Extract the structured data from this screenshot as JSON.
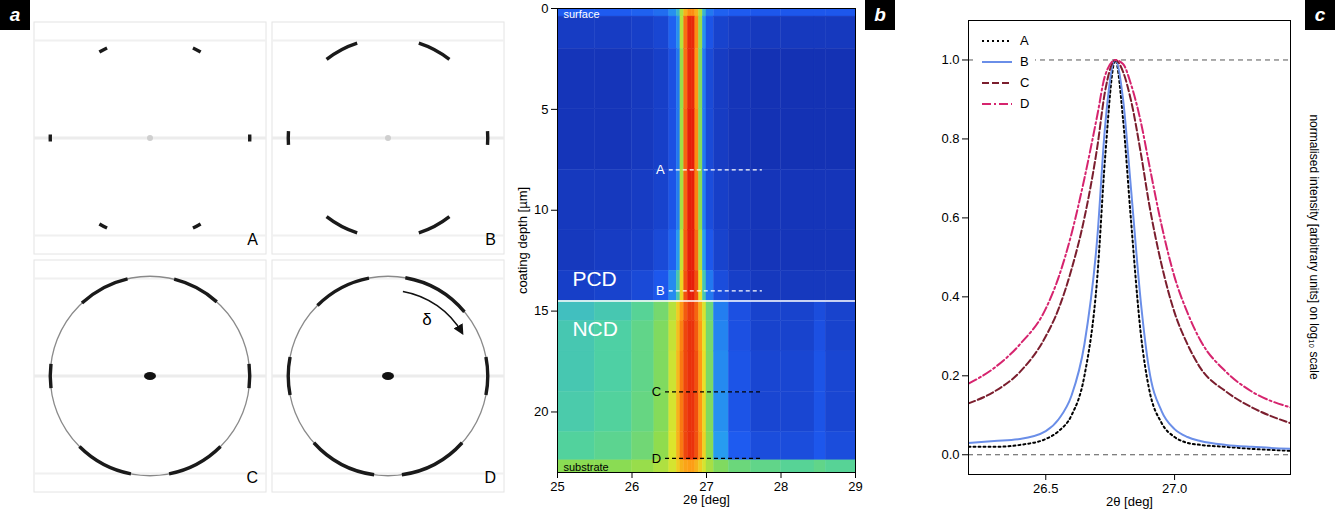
{
  "chart_data": [
    {
      "type": "diffraction_images",
      "panel": "a",
      "images": [
        {
          "label": "A",
          "ring": false,
          "arcs": [
            {
              "center": 0,
              "width": 4
            },
            {
              "center": 62,
              "width": 5
            },
            {
              "center": 118,
              "width": 5
            },
            {
              "center": 180,
              "width": 4
            },
            {
              "center": 242,
              "width": 5
            },
            {
              "center": 298,
              "width": 5
            }
          ]
        },
        {
          "label": "B",
          "ring": false,
          "arcs": [
            {
              "center": 0,
              "width": 8
            },
            {
              "center": 62,
              "width": 20
            },
            {
              "center": 118,
              "width": 20
            },
            {
              "center": 180,
              "width": 8
            },
            {
              "center": 242,
              "width": 20
            },
            {
              "center": 298,
              "width": 20
            }
          ]
        },
        {
          "label": "C",
          "ring": true,
          "arcs": [
            {
              "center": 0,
              "width": 14
            },
            {
              "center": 62,
              "width": 28
            },
            {
              "center": 118,
              "width": 30
            },
            {
              "center": 180,
              "width": 14
            },
            {
              "center": 242,
              "width": 34
            },
            {
              "center": 298,
              "width": 34
            }
          ]
        },
        {
          "label": "D",
          "ring": true,
          "arcs": [
            {
              "center": 0,
              "width": 22
            },
            {
              "center": 60,
              "width": 40
            },
            {
              "center": 118,
              "width": 34
            },
            {
              "center": 180,
              "width": 22
            },
            {
              "center": 242,
              "width": 40
            },
            {
              "center": 298,
              "width": 40
            }
          ],
          "arrow": {
            "label": "δ",
            "from": 80,
            "to": 30
          }
        }
      ]
    },
    {
      "type": "heatmap",
      "panel": "b",
      "x_label": "2θ [deg]",
      "y_label": "coating depth [µm]",
      "xlim": [
        25,
        29
      ],
      "xticks": [
        25,
        26,
        27,
        28,
        29
      ],
      "ylim": [
        0,
        23
      ],
      "yticks": [
        0,
        5,
        10,
        15,
        20
      ],
      "x_edges": [
        25.0,
        25.5,
        26.0,
        26.3,
        26.5,
        26.6,
        26.65,
        26.7,
        26.75,
        26.8,
        26.85,
        26.9,
        26.95,
        27.0,
        27.1,
        27.3,
        27.6,
        28.0,
        28.45,
        28.6,
        29.0
      ],
      "y_edges": [
        0,
        0.4,
        2,
        5,
        8,
        11,
        13,
        14.5,
        15.5,
        17,
        19,
        21,
        22.4,
        23
      ],
      "values": [
        [
          2.5,
          2.5,
          2.6,
          2.8,
          3.4,
          4.2,
          6.5,
          8,
          8.5,
          8.5,
          8,
          6.5,
          4.2,
          3,
          2.6,
          2.5,
          2.4,
          2.4,
          2.4,
          2.4
        ],
        [
          1.6,
          1.6,
          1.7,
          1.9,
          2.6,
          3.4,
          6.6,
          8.8,
          9.5,
          9.5,
          8.5,
          6.2,
          3.4,
          2.3,
          1.8,
          1.6,
          1.5,
          1.5,
          1.5,
          1.5
        ],
        [
          1.4,
          1.4,
          1.5,
          1.7,
          2.2,
          3,
          6.2,
          8.8,
          9.5,
          9.5,
          8.4,
          5.8,
          3,
          2,
          1.6,
          1.4,
          1.3,
          1.3,
          1.3,
          1.3
        ],
        [
          1.4,
          1.4,
          1.5,
          1.7,
          2.2,
          3,
          6.3,
          8.9,
          9.6,
          9.6,
          8.5,
          5.9,
          3,
          2,
          1.6,
          1.4,
          1.3,
          1.3,
          1.3,
          1.3
        ],
        [
          1.5,
          1.5,
          1.6,
          1.8,
          2.3,
          3.1,
          6.4,
          8.9,
          9.6,
          9.6,
          8.6,
          6,
          3.1,
          2.1,
          1.7,
          1.5,
          1.4,
          1.4,
          1.4,
          1.4
        ],
        [
          1.5,
          1.6,
          1.7,
          2,
          2.6,
          3.6,
          6.8,
          9,
          9.6,
          9.6,
          8.8,
          6.5,
          3.6,
          2.4,
          1.8,
          1.5,
          1.4,
          1.4,
          1.4,
          1.4
        ],
        [
          1.7,
          1.8,
          2,
          2.4,
          3.3,
          4.6,
          7.5,
          9.1,
          9.6,
          9.6,
          9.1,
          7.3,
          4.6,
          3,
          2.1,
          1.7,
          1.5,
          1.5,
          1.5,
          1.5
        ],
        [
          4.4,
          4.6,
          5,
          5.6,
          6.6,
          7.6,
          8.4,
          9,
          9.3,
          9.3,
          8.9,
          8.1,
          7,
          5.4,
          3.1,
          2.2,
          1.8,
          1.8,
          2.1,
          1.8
        ],
        [
          4.6,
          4.8,
          5.2,
          5.8,
          6.8,
          7.8,
          8.6,
          9.2,
          9.4,
          9.4,
          9,
          8.3,
          7.2,
          5.6,
          3.2,
          2.2,
          1.8,
          1.8,
          2.2,
          1.8
        ],
        [
          4.6,
          4.8,
          5.2,
          5.8,
          6.9,
          7.9,
          8.7,
          9.2,
          9.4,
          9.4,
          9.1,
          8.4,
          7.3,
          5.7,
          3.3,
          2.3,
          1.9,
          1.9,
          2.3,
          1.9
        ],
        [
          4.7,
          4.9,
          5.3,
          5.9,
          7,
          8,
          8.7,
          9.2,
          9.4,
          9.4,
          9.1,
          8.4,
          7.4,
          5.8,
          3.4,
          2.3,
          1.9,
          1.9,
          2.3,
          1.9
        ],
        [
          4.9,
          5.1,
          5.5,
          6.1,
          7.1,
          8,
          8.7,
          9.2,
          9.4,
          9.4,
          9.1,
          8.5,
          7.5,
          6,
          3.6,
          2.5,
          2.1,
          2.1,
          2.4,
          2.1
        ],
        [
          6,
          6,
          6.2,
          6.5,
          7,
          7.6,
          8,
          8.2,
          8.3,
          8.3,
          8,
          7.6,
          7,
          6.4,
          5.8,
          5.4,
          5.2,
          5,
          5.2,
          5
        ]
      ],
      "boundary": 14.5,
      "lines": [
        {
          "label": "A",
          "depth": 8,
          "x1": 26.5,
          "x2": 27.75,
          "color": "white"
        },
        {
          "label": "B",
          "depth": 14,
          "x1": 26.5,
          "x2": 27.75,
          "color": "white"
        },
        {
          "label": "C",
          "depth": 19,
          "x1": 26.45,
          "x2": 27.75,
          "color": "black"
        },
        {
          "label": "D",
          "depth": 22.3,
          "x1": 26.45,
          "x2": 27.75,
          "color": "black"
        }
      ],
      "annotations": [
        {
          "text": "surface",
          "x": 25.08,
          "y": 0.3,
          "color": "white"
        },
        {
          "text": "substrate",
          "x": 25.08,
          "y": 22.75,
          "color": "black"
        }
      ],
      "regions": [
        {
          "text": "PCD",
          "x": 25.2,
          "y": 13.4
        },
        {
          "text": "NCD",
          "x": 25.2,
          "y": 15.9
        }
      ]
    },
    {
      "type": "line",
      "panel": "c",
      "x_label": "2θ [deg]",
      "y_label": "normalised intensity [arbitrary units] on log₁₀ scale",
      "xlim": [
        26.2,
        27.45
      ],
      "xticks": [
        26.5,
        {
          "value": 27,
          "label": "27.0"
        }
      ],
      "ylim": [
        -0.05,
        1.1
      ],
      "yticks": [
        {
          "value": 0,
          "label": "0.0"
        },
        0.2,
        0.4,
        0.6,
        0.8,
        {
          "value": 1,
          "label": "1.0"
        }
      ],
      "legend": "top-left",
      "reference_lines": [
        0,
        1
      ],
      "x": [
        26.2,
        26.3,
        26.4,
        26.5,
        26.55,
        26.6,
        26.65,
        26.7,
        26.73,
        26.77,
        26.8,
        26.83,
        26.87,
        26.9,
        26.95,
        27.0,
        27.05,
        27.1,
        27.2,
        27.3,
        27.45
      ],
      "series": [
        {
          "name": "A",
          "color": "#000000",
          "line_style": "dotted",
          "values": [
            0.02,
            0.02,
            0.025,
            0.04,
            0.06,
            0.1,
            0.2,
            0.45,
            0.75,
            1.0,
            0.85,
            0.6,
            0.3,
            0.17,
            0.08,
            0.045,
            0.03,
            0.025,
            0.02,
            0.015,
            0.01
          ]
        },
        {
          "name": "B",
          "color": "#6a8ee8",
          "line_style": "solid",
          "values": [
            0.03,
            0.035,
            0.04,
            0.06,
            0.09,
            0.15,
            0.28,
            0.55,
            0.83,
            1.0,
            0.9,
            0.68,
            0.38,
            0.22,
            0.11,
            0.065,
            0.045,
            0.035,
            0.025,
            0.02,
            0.015
          ]
        },
        {
          "name": "C",
          "color": "#7b1e2e",
          "line_style": "dashed",
          "values": [
            0.13,
            0.16,
            0.21,
            0.3,
            0.37,
            0.47,
            0.6,
            0.78,
            0.92,
            1.0,
            0.97,
            0.9,
            0.76,
            0.64,
            0.48,
            0.36,
            0.28,
            0.22,
            0.16,
            0.12,
            0.08
          ]
        },
        {
          "name": "D",
          "color": "#d6246e",
          "line_style": "dashdot",
          "values": [
            0.18,
            0.22,
            0.28,
            0.37,
            0.45,
            0.56,
            0.7,
            0.86,
            0.96,
            1.0,
            0.99,
            0.94,
            0.84,
            0.74,
            0.58,
            0.45,
            0.36,
            0.29,
            0.21,
            0.16,
            0.12
          ]
        }
      ]
    }
  ]
}
